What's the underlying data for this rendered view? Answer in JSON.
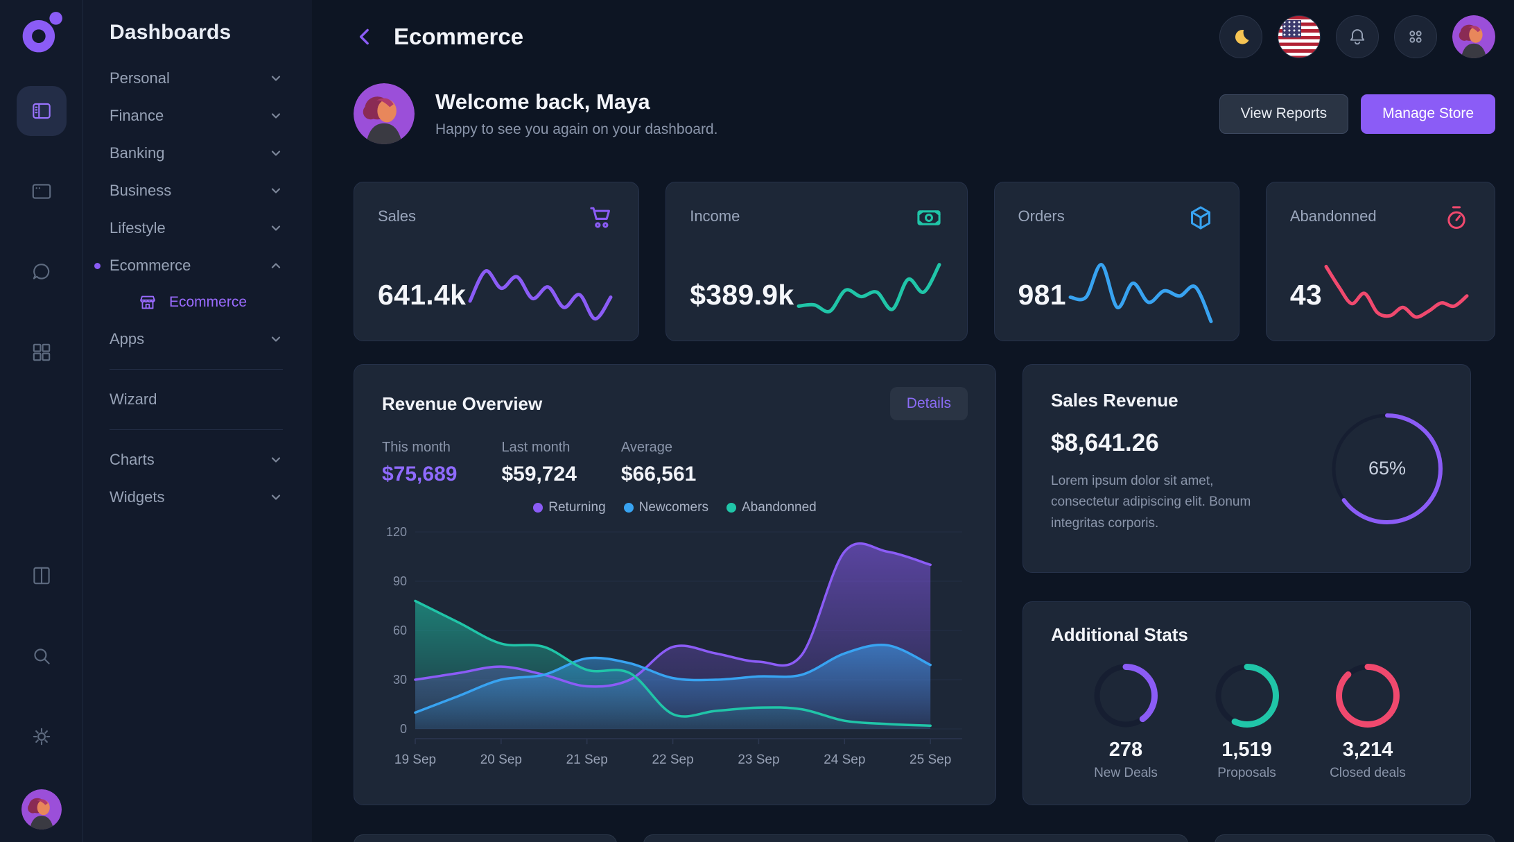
{
  "colors": {
    "background": "#0d1523",
    "sidebar": "#121a2b",
    "card": "#1d2737",
    "accent_purple": "#8b5cf6",
    "blue": "#38a3f1",
    "teal": "#20c5a8",
    "red": "#f0496e",
    "yellow": "#f6c453",
    "text_muted": "#8a95aa"
  },
  "sidebar": {
    "title": "Dashboards",
    "items": [
      {
        "label": "Personal"
      },
      {
        "label": "Finance"
      },
      {
        "label": "Banking"
      },
      {
        "label": "Business"
      },
      {
        "label": "Lifestyle"
      },
      {
        "label": "Ecommerce"
      },
      {
        "label": "Apps"
      },
      {
        "label": "Wizard"
      },
      {
        "label": "Charts"
      },
      {
        "label": "Widgets"
      }
    ],
    "submenu": {
      "label": "Ecommerce"
    }
  },
  "header": {
    "title": "Ecommerce"
  },
  "welcome": {
    "title": "Welcome back, Maya",
    "subtitle": "Happy to see you again on your dashboard.",
    "view_reports_label": "View Reports",
    "manage_store_label": "Manage Store"
  },
  "stat_cards": [
    {
      "label": "Sales",
      "value": "641.4k"
    },
    {
      "label": "Income",
      "value": "$389.9k"
    },
    {
      "label": "Orders",
      "value": "981"
    },
    {
      "label": "Abandonned",
      "value": "43"
    }
  ],
  "revenue": {
    "title": "Revenue Overview",
    "details_label": "Details",
    "stats": [
      {
        "label": "This month",
        "value": "$75,689"
      },
      {
        "label": "Last month",
        "value": "$59,724"
      },
      {
        "label": "Average",
        "value": "$66,561"
      }
    ],
    "legend": [
      {
        "label": "Returning",
        "color": "#8b5cf6"
      },
      {
        "label": "Newcomers",
        "color": "#38a3f1"
      },
      {
        "label": "Abandonned",
        "color": "#20c5a8"
      }
    ]
  },
  "sales_revenue": {
    "title": "Sales Revenue",
    "value": "$8,641.26",
    "description": "Lorem ipsum dolor sit amet, consectetur adipiscing elit. Bonum integritas corporis.",
    "pct_label": "65%"
  },
  "additional_stats": {
    "title": "Additional Stats",
    "items": [
      {
        "value": "278",
        "label": "New Deals"
      },
      {
        "value": "1,519",
        "label": "Proposals"
      },
      {
        "value": "3,214",
        "label": "Closed deals"
      }
    ]
  },
  "chart_data": [
    {
      "id": "revenue-overview",
      "type": "area",
      "title": "Revenue Overview",
      "x_labels": [
        "19 Sep",
        "20 Sep",
        "21 Sep",
        "22 Sep",
        "23 Sep",
        "24 Sep",
        "25 Sep"
      ],
      "x_step": 0.5,
      "x_max": 6.37,
      "ylim": [
        0,
        120
      ],
      "yticks": [
        0,
        30,
        60,
        90,
        120
      ],
      "grid": true,
      "legend_position": "top",
      "series": [
        {
          "name": "Returning",
          "color": "#8b5cf6",
          "values": [
            30,
            34,
            38,
            33,
            26,
            30,
            50,
            46,
            41,
            45,
            108,
            108,
            100
          ]
        },
        {
          "name": "Newcomers",
          "color": "#38a3f1",
          "values": [
            10,
            20,
            30,
            33,
            43,
            40,
            31,
            30,
            32,
            33,
            46,
            51,
            39
          ]
        },
        {
          "name": "Abandonned",
          "color": "#20c5a8",
          "values": [
            78,
            65,
            52,
            50,
            36,
            34,
            9,
            11,
            13,
            12,
            5,
            3,
            2
          ]
        }
      ]
    },
    {
      "id": "sales-sparkline",
      "type": "line",
      "color": "#8b5cf6",
      "values": [
        38,
        85,
        58,
        76,
        42,
        60,
        28,
        48,
        10,
        44
      ]
    },
    {
      "id": "income-sparkline",
      "type": "line",
      "color": "#20c5a8",
      "values": [
        30,
        32,
        22,
        55,
        45,
        52,
        25,
        72,
        52,
        95
      ]
    },
    {
      "id": "orders-sparkline",
      "type": "line",
      "color": "#38a3f1",
      "values": [
        44,
        44,
        95,
        28,
        66,
        36,
        54,
        46,
        60,
        6
      ]
    },
    {
      "id": "abandonned-sparkline",
      "type": "line",
      "color": "#f0496e",
      "values": [
        92,
        60,
        34,
        50,
        20,
        15,
        28,
        13,
        22,
        35,
        30,
        46
      ]
    },
    {
      "id": "sales-revenue-donut",
      "type": "donut",
      "pct": 65,
      "color": "#8b5cf6"
    },
    {
      "id": "additional-stats-donuts",
      "type": "donut",
      "items": [
        {
          "label": "New Deals",
          "pct": 40,
          "color": "#8b5cf6"
        },
        {
          "label": "Proposals",
          "pct": 57,
          "color": "#20c5a8"
        },
        {
          "label": "Closed deals",
          "pct": 88,
          "color": "#f0496e"
        }
      ]
    }
  ]
}
